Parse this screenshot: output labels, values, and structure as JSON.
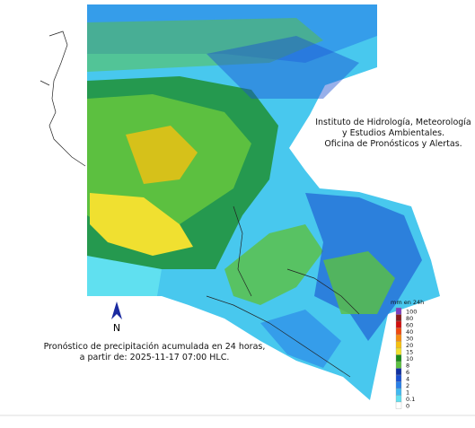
{
  "institute": {
    "lines": [
      "Instituto de Hidrología, Meteorología",
      "y Estudios Ambientales.",
      "Oficina de Pronósticos y Alertas."
    ]
  },
  "north_label": "N",
  "caption": {
    "lines": [
      "Pronóstico de precipitación acumulada en 24 horas,",
      "a partir de: 2025-11-17 07:00 HLC."
    ]
  },
  "legend": {
    "title": "mm en 24h",
    "items": [
      {
        "label": "100",
        "color": "#7b3fbf"
      },
      {
        "label": "80",
        "color": "#8b1a1a"
      },
      {
        "label": "60",
        "color": "#d01010"
      },
      {
        "label": "40",
        "color": "#f04a10"
      },
      {
        "label": "30",
        "color": "#f58c10"
      },
      {
        "label": "20",
        "color": "#f5c010"
      },
      {
        "label": "15",
        "color": "#f0e030"
      },
      {
        "label": "10",
        "color": "#1a8a1a"
      },
      {
        "label": "8",
        "color": "#5cc040"
      },
      {
        "label": "6",
        "color": "#1030a0"
      },
      {
        "label": "4",
        "color": "#1a50d0"
      },
      {
        "label": "2",
        "color": "#2a80e8"
      },
      {
        "label": "1",
        "color": "#40b8f0"
      },
      {
        "label": "0.1",
        "color": "#60e0f0"
      },
      {
        "label": "0",
        "color": "#ffffff"
      }
    ]
  }
}
